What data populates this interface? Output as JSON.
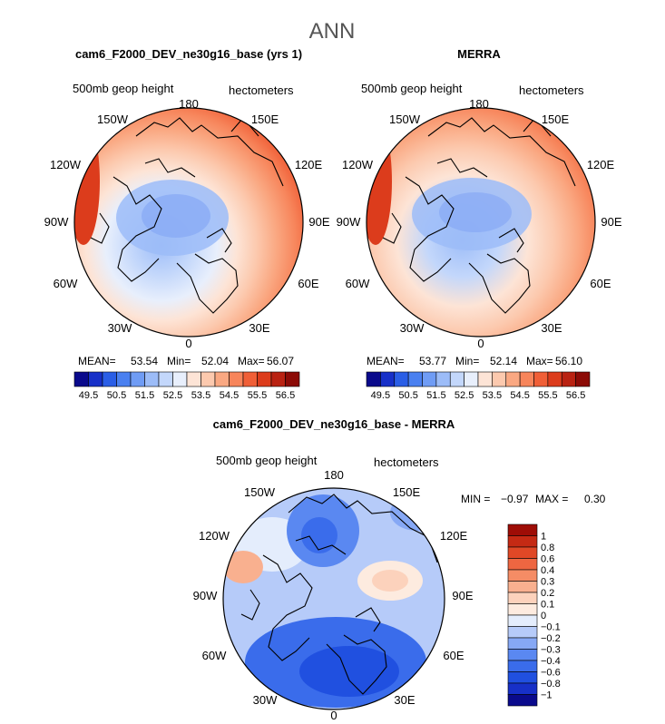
{
  "page_title": "ANN",
  "panels": [
    {
      "title": "cam6_F2000_DEV_ne30g16_base (yrs 1)",
      "variable": "500mb geop height",
      "units": "hectometers",
      "lon_labels": [
        "180",
        "150W",
        "120W",
        "90W",
        "60W",
        "30W",
        "0",
        "30E",
        "60E",
        "90E",
        "120E",
        "150E"
      ],
      "stats": {
        "mean_label": "MEAN=",
        "mean": "53.54",
        "min_label": "Min=",
        "min": "52.04",
        "max_label": "Max=",
        "max": "56.07"
      }
    },
    {
      "title": "MERRA",
      "variable": "500mb geop height",
      "units": "hectometers",
      "lon_labels": [
        "180",
        "150W",
        "120W",
        "90W",
        "60W",
        "30W",
        "0",
        "30E",
        "60E",
        "90E",
        "120E",
        "150E"
      ],
      "stats": {
        "mean_label": "MEAN=",
        "mean": "53.77",
        "min_label": "Min=",
        "min": "52.14",
        "max_label": "Max=",
        "max": "56.10"
      }
    },
    {
      "title": "cam6_F2000_DEV_ne30g16_base - MERRA",
      "variable": "500mb geop height",
      "units": "hectometers",
      "lon_labels": [
        "180",
        "150W",
        "120W",
        "90W",
        "60W",
        "30W",
        "0",
        "30E",
        "60E",
        "90E",
        "120E",
        "150E"
      ],
      "stats": {
        "min_label": "MIN =",
        "min": "−0.97",
        "max_label": "MAX =",
        "max": "0.30"
      }
    }
  ],
  "colorbar_abs": {
    "colors": [
      "#0a0a8c",
      "#1730c8",
      "#2a5ee6",
      "#4a80f0",
      "#6f9cf5",
      "#9cbcf8",
      "#c3d7fb",
      "#e8effc",
      "#fde4d6",
      "#fcc9ae",
      "#faa882",
      "#f7855b",
      "#f05f37",
      "#dc3c1c",
      "#b92212",
      "#8c0b06"
    ],
    "tick_labels": [
      "49.5",
      "50.5",
      "51.5",
      "52.5",
      "53.5",
      "54.5",
      "55.5",
      "56.5"
    ]
  },
  "colorbar_diff": {
    "colors": [
      "#0a0a8c",
      "#1730c8",
      "#2050e0",
      "#3a6ceb",
      "#5a88f1",
      "#86a8f5",
      "#b6cbf9",
      "#e4edfc",
      "#fdebdf",
      "#fcd2bc",
      "#f9b08f",
      "#f58c65",
      "#ee6641",
      "#e04826",
      "#c52a14",
      "#9e0d06"
    ],
    "tick_labels": [
      "1",
      "0.8",
      "0.6",
      "0.4",
      "0.3",
      "0.2",
      "0.1",
      "0",
      "−0.1",
      "−0.2",
      "−0.3",
      "−0.4",
      "−0.6",
      "−0.8",
      "−1"
    ]
  }
}
